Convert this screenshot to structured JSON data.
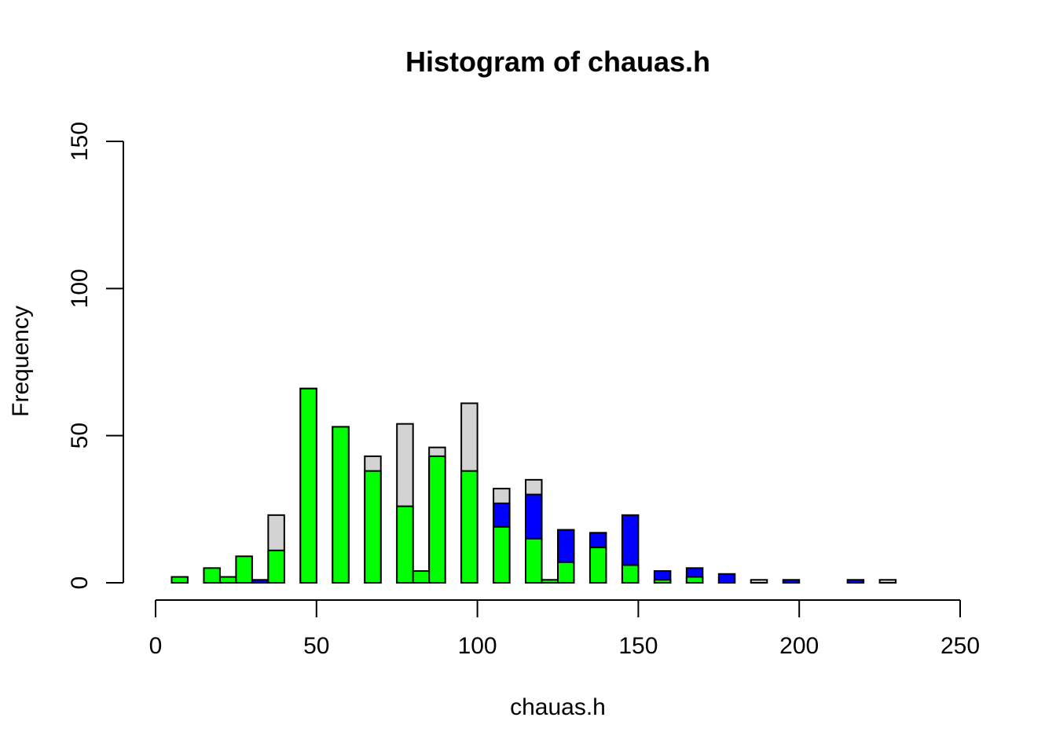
{
  "chart_data": {
    "type": "bar",
    "title": "Histogram of chauas.h",
    "xlabel": "chauas.h",
    "ylabel": "Frequency",
    "xlim": [
      0,
      250
    ],
    "ylim": [
      0,
      150
    ],
    "x_ticks": [
      "0",
      "50",
      "100",
      "150",
      "200",
      "250"
    ],
    "y_ticks": [
      "0",
      "50",
      "100",
      "150"
    ],
    "grid": false,
    "series": [
      {
        "color": "#d3d3d3",
        "bins": [
          [
            35,
            40,
            23
          ],
          [
            45,
            50,
            66
          ],
          [
            55,
            60,
            53
          ],
          [
            65,
            70,
            43
          ],
          [
            75,
            80,
            54
          ],
          [
            85,
            90,
            46
          ],
          [
            95,
            100,
            61
          ],
          [
            105,
            110,
            32
          ],
          [
            115,
            120,
            35
          ],
          [
            185,
            190,
            1
          ],
          [
            225,
            230,
            1
          ]
        ]
      },
      {
        "color": "#0000ff",
        "bins": [
          [
            30,
            35,
            1
          ],
          [
            105,
            110,
            27
          ],
          [
            115,
            120,
            30
          ],
          [
            125,
            130,
            18
          ],
          [
            135,
            140,
            17
          ],
          [
            145,
            150,
            23
          ],
          [
            155,
            160,
            4
          ],
          [
            165,
            170,
            5
          ],
          [
            175,
            180,
            3
          ],
          [
            195,
            200,
            1
          ],
          [
            215,
            220,
            1
          ]
        ]
      },
      {
        "color": "#00ff00",
        "bins": [
          [
            5,
            10,
            2
          ],
          [
            15,
            20,
            5
          ],
          [
            20,
            25,
            2
          ],
          [
            25,
            30,
            9
          ],
          [
            35,
            40,
            11
          ],
          [
            45,
            50,
            66
          ],
          [
            55,
            60,
            53
          ],
          [
            65,
            70,
            38
          ],
          [
            75,
            80,
            26
          ],
          [
            80,
            85,
            4
          ],
          [
            85,
            90,
            43
          ],
          [
            95,
            100,
            38
          ],
          [
            105,
            110,
            19
          ],
          [
            115,
            120,
            15
          ],
          [
            120,
            125,
            1
          ],
          [
            125,
            130,
            7
          ],
          [
            135,
            140,
            12
          ],
          [
            145,
            150,
            6
          ],
          [
            155,
            160,
            1
          ],
          [
            165,
            170,
            2
          ]
        ]
      }
    ]
  }
}
